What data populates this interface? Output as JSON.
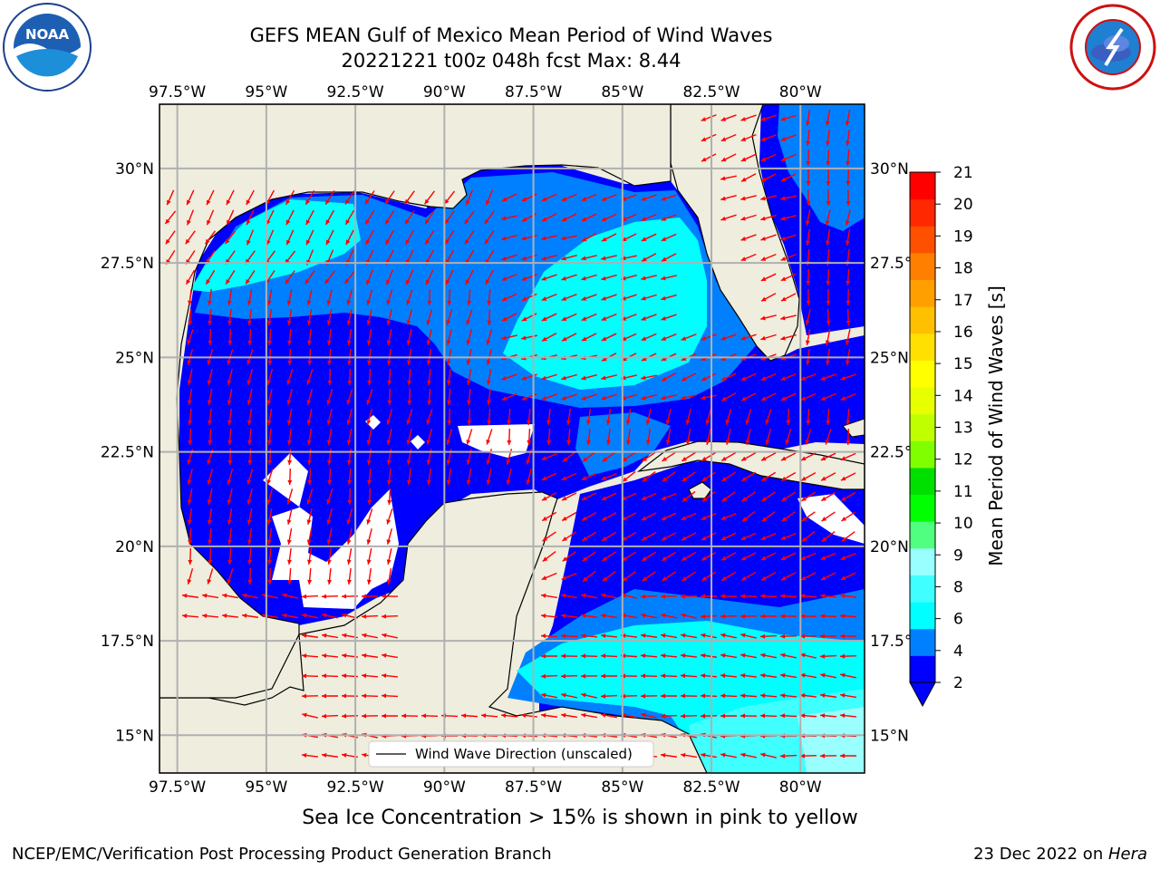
{
  "header": {
    "title_line1": "GEFS MEAN Gulf of Mexico Mean Period of Wind Waves",
    "title_line2": "20221221 t00z 048h fcst   Max: 8.44"
  },
  "logos": {
    "noaa_text": "NOAA",
    "noaa_ring_text": "NATIONAL OCEANIC AND ATMOSPHERIC ADMINISTRATION · U.S. DEPARTMENT OF COMMERCE",
    "nws_ring_text": "NATIONAL WEATHER SERVICE"
  },
  "map": {
    "lon_labels": [
      "97.5°W",
      "95°W",
      "92.5°W",
      "90°W",
      "87.5°W",
      "85°W",
      "82.5°W",
      "80°W"
    ],
    "lat_labels": [
      "30°N",
      "27.5°N",
      "25°N",
      "22.5°N",
      "20°N",
      "17.5°N",
      "15°N"
    ],
    "lon_values": [
      -97.5,
      -95,
      -92.5,
      -90,
      -87.5,
      -85,
      -82.5,
      -80
    ],
    "lat_values": [
      30,
      27.5,
      25,
      22.5,
      20,
      17.5,
      15
    ],
    "lon_range": [
      -98,
      -78.2
    ],
    "lat_range": [
      14,
      31.7
    ],
    "legend_label": "Wind Wave Direction (unscaled)",
    "colors": {
      "land": "#efedde",
      "ice_free": "#ffffff",
      "arrow": "#ff0000",
      "grid": "#b0b0b0"
    }
  },
  "colorbar": {
    "label": "Mean Period of Wind Waves [s]",
    "ticks": [
      "21",
      "20",
      "19",
      "18",
      "17",
      "16",
      "15",
      "14",
      "13",
      "12",
      "11",
      "10",
      "9",
      "8",
      "6",
      "4",
      "2"
    ],
    "colors": [
      "#0000ff",
      "#0080ff",
      "#00ffff",
      "#40ffff",
      "#99ffff",
      "#50ff80",
      "#00ff00",
      "#00e000",
      "#80ff00",
      "#c0ff00",
      "#e8ff00",
      "#ffff00",
      "#ffe000",
      "#ffc000",
      "#ffa000",
      "#ff8000",
      "#ff5000",
      "#ff2800",
      "#ff0000"
    ]
  },
  "caption": "Sea Ice Concentration > 15% is shown in pink to yellow",
  "footer": {
    "left": "NCEP/EMC/Verification Post Processing Product Generation Branch",
    "date": "23 Dec 2022 on ",
    "machine": "Hera"
  }
}
